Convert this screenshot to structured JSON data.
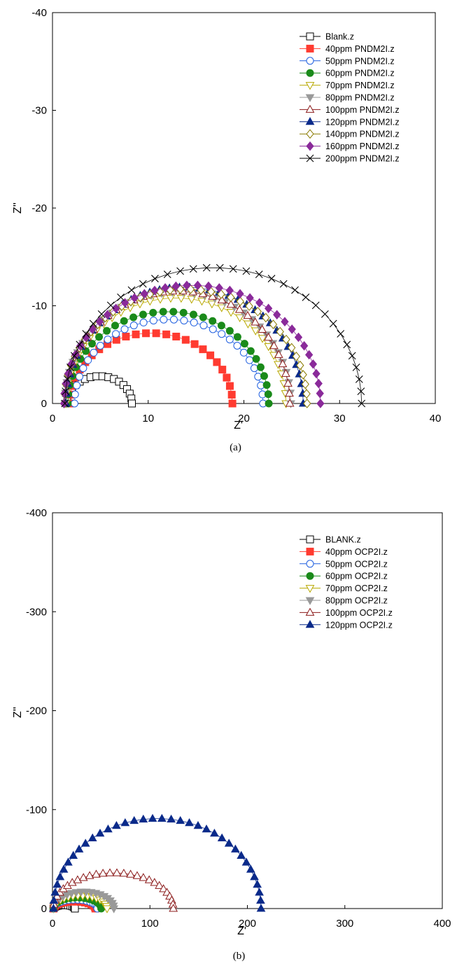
{
  "chart_data": [
    {
      "type": "scatter",
      "caption": "(a)",
      "xlabel": "Z'",
      "ylabel": "Z''",
      "xlim": [
        0,
        40
      ],
      "ylim": [
        0,
        -40
      ],
      "xticks": [
        0,
        10,
        20,
        30,
        40
      ],
      "yticks": [
        0,
        -10,
        -20,
        -30,
        -40
      ],
      "xtick_labels": [
        "0",
        "10",
        "20",
        "30",
        "40"
      ],
      "ytick_labels": [
        "0",
        "-10",
        "-20",
        "-30",
        "-40"
      ],
      "legend_position": "top-right",
      "series": [
        {
          "name": "Blank.z",
          "marker": "square-open",
          "color": "#000000",
          "r0": 1.5,
          "r1": 8.3,
          "peak": 2.8,
          "n": 18
        },
        {
          "name": "40ppm PNDM2I.z",
          "marker": "square-filled",
          "color": "#ff3b30",
          "r0": 1.8,
          "r1": 18.8,
          "peak": 7.2,
          "n": 26
        },
        {
          "name": "50ppm PNDM2I.z",
          "marker": "circle-open",
          "color": "#1f5fe0",
          "r0": 2.3,
          "r1": 22.0,
          "peak": 8.6,
          "n": 30
        },
        {
          "name": "60ppm PNDM2I.z",
          "marker": "circle-filled",
          "color": "#1a8a1a",
          "r0": 1.6,
          "r1": 22.6,
          "peak": 9.4,
          "n": 32
        },
        {
          "name": "70ppm PNDM2I.z",
          "marker": "triangle-down-open",
          "color": "#b8a800",
          "r0": 1.4,
          "r1": 24.4,
          "peak": 10.8,
          "n": 34
        },
        {
          "name": "80ppm PNDM2I.z",
          "marker": "triangle-down-filled",
          "color": "#999999",
          "r0": 1.3,
          "r1": 24.9,
          "peak": 11.4,
          "n": 34
        },
        {
          "name": "100ppm PNDM2I.z",
          "marker": "triangle-up-open",
          "color": "#8b1a1a",
          "r0": 1.4,
          "r1": 24.8,
          "peak": 11.5,
          "n": 36
        },
        {
          "name": "120ppm PNDM2I.z",
          "marker": "triangle-up-filled",
          "color": "#0a2a8a",
          "r0": 1.4,
          "r1": 26.2,
          "peak": 11.9,
          "n": 38
        },
        {
          "name": "140ppm PNDM2I.z",
          "marker": "diamond-open",
          "color": "#8a7a00",
          "r0": 1.2,
          "r1": 26.6,
          "peak": 11.7,
          "n": 38
        },
        {
          "name": "160ppm PNDM2I.z",
          "marker": "diamond-filled",
          "color": "#8a2a9a",
          "r0": 1.2,
          "r1": 28.0,
          "peak": 12.1,
          "n": 38
        },
        {
          "name": "200ppm PNDM2I.z",
          "marker": "cross",
          "color": "#000000",
          "r0": 1.3,
          "r1": 32.3,
          "peak": 13.9,
          "n": 36
        }
      ]
    },
    {
      "type": "scatter",
      "caption": "(b)",
      "xlabel": "Z'",
      "ylabel": "Z''",
      "xlim": [
        0,
        400
      ],
      "ylim": [
        0,
        -400
      ],
      "xticks": [
        0,
        100,
        200,
        300,
        400
      ],
      "yticks": [
        0,
        -100,
        -200,
        -300,
        -400
      ],
      "xtick_labels": [
        "0",
        "100",
        "200",
        "300",
        "400"
      ],
      "ytick_labels": [
        "0",
        "-100",
        "-200",
        "-300",
        "-400"
      ],
      "legend_position": "top-right",
      "series": [
        {
          "name": "BLANK.z",
          "marker": "square-open",
          "color": "#000000",
          "r0": 1.0,
          "r1": 23.0,
          "peak": 3.5,
          "n": 14
        },
        {
          "name": "40ppm OCP2I.z",
          "marker": "square-filled",
          "color": "#ff3b30",
          "r0": 1.0,
          "r1": 44.0,
          "peak": 7.0,
          "n": 16
        },
        {
          "name": "50ppm OCP2I.z",
          "marker": "circle-open",
          "color": "#1f5fe0",
          "r0": 1.0,
          "r1": 46.0,
          "peak": 9.0,
          "n": 16
        },
        {
          "name": "60ppm OCP2I.z",
          "marker": "circle-filled",
          "color": "#1a8a1a",
          "r0": 1.0,
          "r1": 50.0,
          "peak": 11.0,
          "n": 16
        },
        {
          "name": "70ppm OCP2I.z",
          "marker": "triangle-down-open",
          "color": "#b8a800",
          "r0": 1.0,
          "r1": 56.0,
          "peak": 13.0,
          "n": 18
        },
        {
          "name": "80ppm OCP2I.z",
          "marker": "triangle-down-filled",
          "color": "#999999",
          "r0": 1.0,
          "r1": 63.0,
          "peak": 17.0,
          "n": 20
        },
        {
          "name": "100ppm OCP2I.z",
          "marker": "triangle-up-open",
          "color": "#8b1a1a",
          "r0": 1.0,
          "r1": 124.0,
          "peak": 36.0,
          "n": 28
        },
        {
          "name": "120ppm OCP2I.z",
          "marker": "triangle-up-filled",
          "color": "#0a2a8a",
          "r0": 1.0,
          "r1": 214.0,
          "peak": 91.0,
          "n": 36
        }
      ]
    }
  ]
}
